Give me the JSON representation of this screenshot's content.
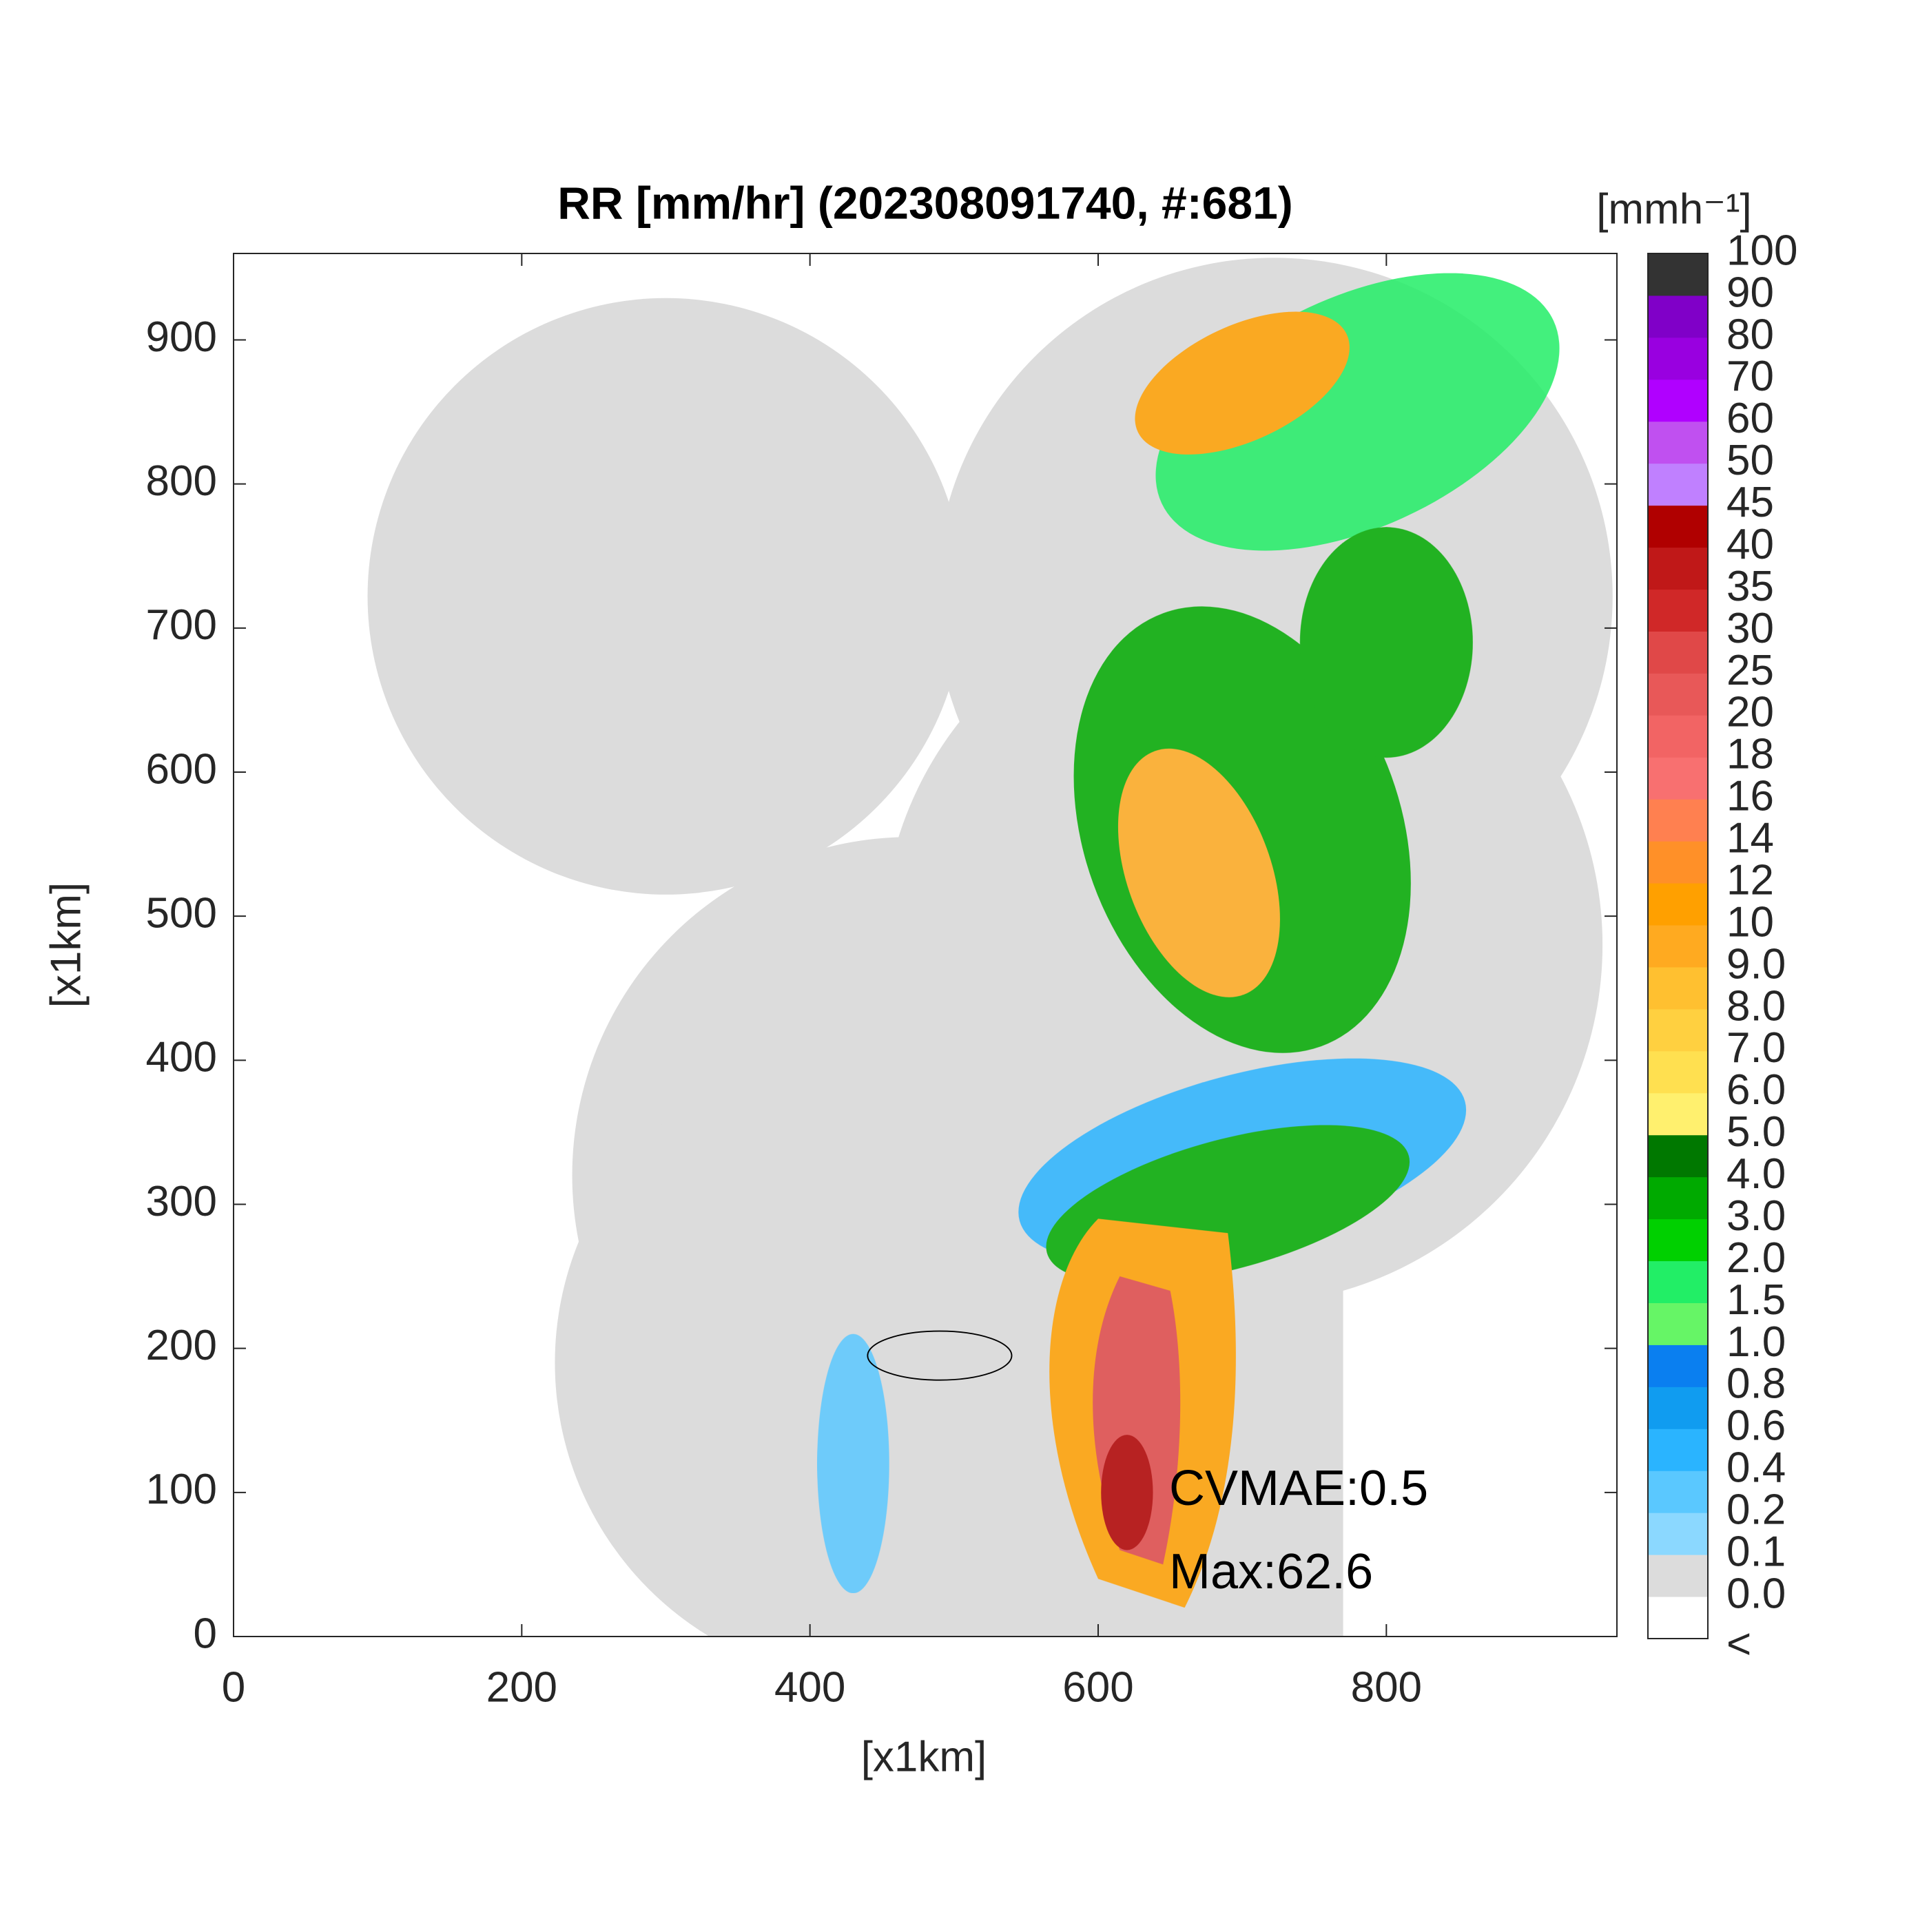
{
  "chart_data": {
    "type": "radar-map",
    "title": "RR [mm/hr] (202308091740, #:681)",
    "xlabel": "[x1km]",
    "ylabel": "[x1km]",
    "xlim": [
      0,
      960
    ],
    "ylim": [
      0,
      960
    ],
    "xticks": [
      0,
      200,
      400,
      600,
      800
    ],
    "yticks": [
      0,
      100,
      200,
      300,
      400,
      500,
      600,
      700,
      800,
      900
    ],
    "annotations": [
      "CVMAE:0.5",
      "Max:62.6"
    ],
    "colorbar": {
      "label": "[mmh⁻¹]",
      "labels": [
        "<",
        "0.0",
        "0.1",
        "0.2",
        "0.4",
        "0.6",
        "0.8",
        "1.0",
        "1.5",
        "2.0",
        "3.0",
        "4.0",
        "5.0",
        "6.0",
        "7.0",
        "8.0",
        "9.0",
        "10",
        "12",
        "14",
        "16",
        "18",
        "20",
        "25",
        "30",
        "35",
        "40",
        "45",
        "50",
        "60",
        "70",
        "80",
        "90",
        "100"
      ],
      "colors": [
        "#ffffff",
        "#dcdcdc",
        "#8bd8ff",
        "#5ac8ff",
        "#2ab4ff",
        "#109cf0",
        "#0a7ff0",
        "#66f566",
        "#22ee66",
        "#00d000",
        "#00aa00",
        "#007800",
        "#fff06e",
        "#ffe050",
        "#ffd040",
        "#ffc030",
        "#ffaa20",
        "#ffa000",
        "#ff9028",
        "#ff8050",
        "#f87070",
        "#f26464",
        "#e85858",
        "#e04848",
        "#d02828",
        "#c01818",
        "#b00000",
        "#c080ff",
        "#c050f0",
        "#b000ff",
        "#9900e0",
        "#8000c8",
        "#333333"
      ]
    }
  }
}
